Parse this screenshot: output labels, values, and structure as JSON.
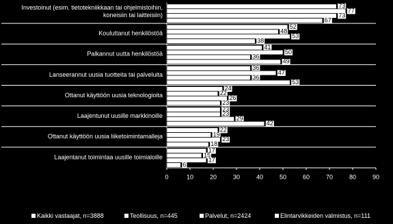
{
  "chart_data": {
    "type": "hbar",
    "categories": [
      "Investoinut  (esim. tietotekniikkaan tai ohjelmistoihin, koneisiin tai laitteisiin)",
      "Kouluttanut henkilöstöä",
      "Palkannut uutta henkilöstöä",
      "Lanseerannut uusia tuotteita tai palveluita",
      "Ottanut käyttöön uusia teknologioita",
      "Laajentunut uusille markkinoille",
      "Ottanut käyttöön uusia liiketoimintamalleja",
      "Laajentanut toimintaa uusille toimialoille"
    ],
    "series": [
      {
        "name": "Kaikki vastaajat, n=3888",
        "color": "#ffffff",
        "values": [
          73,
          52,
          41,
          36,
          24,
          23,
          22,
          17
        ]
      },
      {
        "name": "Teollisuus, n=445",
        "color": "#ffffff",
        "values": [
          77,
          48,
          50,
          47,
          22,
          23,
          19,
          15
        ]
      },
      {
        "name": "Palvelut, n=2424",
        "color": "#ffffff",
        "values": [
          73,
          53,
          36,
          36,
          26,
          29,
          23,
          17
        ]
      },
      {
        "name": "Elintarvikkeiden valmistus, n=111",
        "color": "#ffffff",
        "values": [
          67,
          38,
          49,
          53,
          23,
          42,
          18,
          6
        ]
      }
    ],
    "xlim": [
      0,
      90
    ],
    "xticks": [
      0,
      10,
      20,
      30,
      40,
      50,
      60,
      70,
      80,
      90
    ]
  }
}
